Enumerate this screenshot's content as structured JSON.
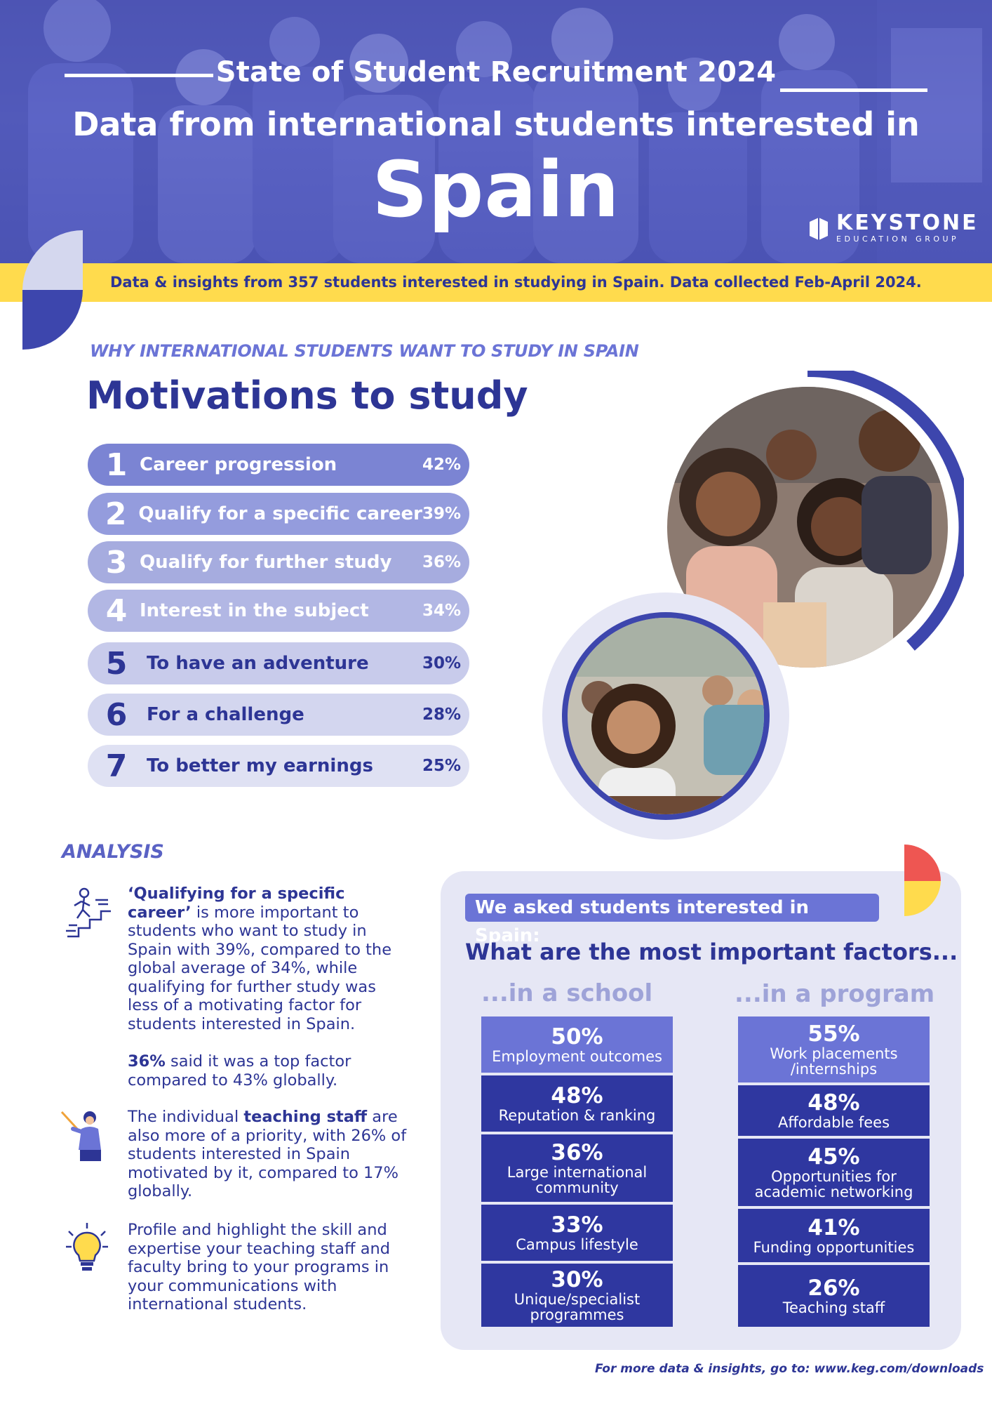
{
  "header": {
    "kicker": "State of Student Recruitment 2024",
    "subtitle": "Data from international students interested in",
    "country": "Spain",
    "logo_name": "KEYSTONE",
    "logo_tagline": "EDUCATION GROUP"
  },
  "band": {
    "text": "Data & insights from  357 students interested in studying in Spain. Data collected Feb-April 2024."
  },
  "motivations": {
    "kicker": "WHY INTERNATIONAL STUDENTS WANT TO STUDY IN SPAIN",
    "title": "Motivations to study",
    "items": [
      {
        "rank": "1",
        "label": "Career progression",
        "pct": "42%"
      },
      {
        "rank": "2",
        "label": "Qualify for a specific career",
        "pct": "39%"
      },
      {
        "rank": "3",
        "label": "Qualify for further study",
        "pct": "36%"
      },
      {
        "rank": "4",
        "label": "Interest in the subject",
        "pct": "34%"
      },
      {
        "rank": "5",
        "label": "To have an adventure",
        "pct": "30%"
      },
      {
        "rank": "6",
        "label": "For a challenge",
        "pct": "28%"
      },
      {
        "rank": "7",
        "label": "To better my earnings",
        "pct": "25%"
      }
    ]
  },
  "analysis": {
    "title": "ANALYSIS",
    "p1_bold": "‘Qualifying for a specific career’",
    "p1_rest": " is more important to students who want to study in Spain with 39%, compared to the global average of 34%, while qualifying for further study was less of a motivating factor for students interested in Spain.",
    "p2_bold": "36%",
    "p2_rest": " said it was a top factor compared to 43% globally.",
    "p3_pre": "The individual ",
    "p3_bold": "teaching staff",
    "p3_rest": " are also more of a priority, with 26% of students interested in Spain motivated by it, compared to 17% globally.",
    "p4": "Profile and highlight the skill and expertise your teaching staff and faculty bring to your programs in your communications with international students."
  },
  "factors": {
    "tag": "We asked students interested in Spain:",
    "question": "What are the most important factors...",
    "school_head": "...in a school",
    "program_head": "...in a program",
    "school": [
      {
        "value": "50%",
        "label": "Employment outcomes"
      },
      {
        "value": "48%",
        "label": "Reputation & ranking"
      },
      {
        "value": "36%",
        "label": "Large international community"
      },
      {
        "value": "33%",
        "label": "Campus lifestyle"
      },
      {
        "value": "30%",
        "label": "Unique/specialist programmes"
      }
    ],
    "program": [
      {
        "value": "55%",
        "label": "Work placements /internships"
      },
      {
        "value": "48%",
        "label": "Affordable fees"
      },
      {
        "value": "45%",
        "label": "Opportunities for academic networking"
      },
      {
        "value": "41%",
        "label": "Funding opportunities"
      },
      {
        "value": "26%",
        "label": "Teaching staff"
      }
    ]
  },
  "footer": {
    "text": "For more data & insights, go to: www.keg.com/downloads"
  },
  "colors": {
    "brand": "#2d3595",
    "accent": "#6b74d6",
    "band": "#ffdb4d",
    "panel": "#e6e7f5",
    "box_dark": "#2f37a0",
    "box_light": "#6b74d6"
  }
}
